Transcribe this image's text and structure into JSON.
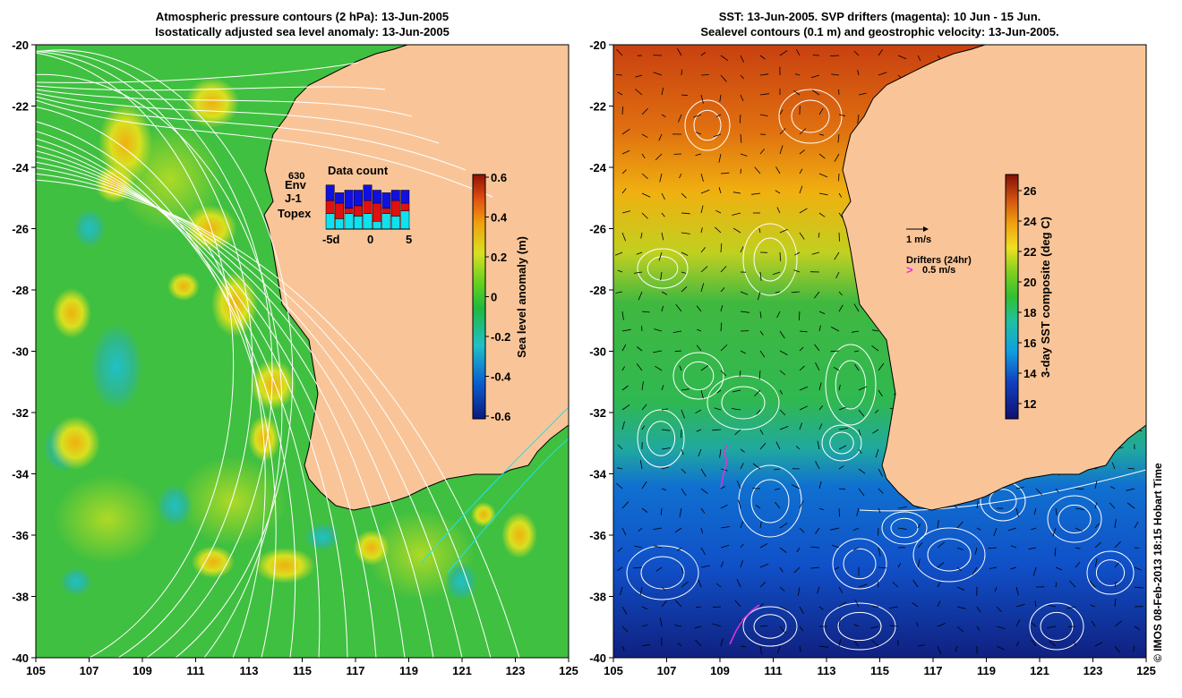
{
  "left_panel": {
    "title_line1": "Atmospheric pressure contours (2 hPa): 13-Jun-2005",
    "title_line2": "Isostatically adjusted sea level anomaly: 13-Jun-2005",
    "colorbar_label": "Sea level anomaly (m)",
    "colorbar_ticks": [
      "0.6",
      "0.4",
      "0.2",
      "0",
      "-0.2",
      "-0.4",
      "-0.6"
    ],
    "data_count": {
      "title": "Data count",
      "count_label": "630",
      "legend": [
        "Env",
        "J-1",
        "Topex"
      ],
      "legend_colors": [
        "#1010e0",
        "#e01010",
        "#10e0f0"
      ],
      "x_ticks": [
        "-5d",
        "0",
        "5"
      ],
      "bars": [
        {
          "topex": 0.3,
          "j1": 0.25,
          "env": 0.3
        },
        {
          "topex": 0.2,
          "j1": 0.3,
          "env": 0.2
        },
        {
          "topex": 0.3,
          "j1": 0.1,
          "env": 0.35
        },
        {
          "topex": 0.25,
          "j1": 0.2,
          "env": 0.3
        },
        {
          "topex": 0.3,
          "j1": 0.25,
          "env": 0.3
        },
        {
          "topex": 0.15,
          "j1": 0.35,
          "env": 0.25
        },
        {
          "topex": 0.3,
          "j1": 0.1,
          "env": 0.3
        },
        {
          "topex": 0.25,
          "j1": 0.3,
          "env": 0.2
        },
        {
          "topex": 0.35,
          "j1": 0.15,
          "env": 0.25
        }
      ]
    }
  },
  "right_panel": {
    "title_line1": "SST: 13-Jun-2005. SVP drifters (magenta): 10 Jun - 15 Jun.",
    "title_line2": "Sealevel contours (0.1 m) and geostrophic velocity: 13-Jun-2005.",
    "colorbar_label": "3-day SST composite (deg C)",
    "colorbar_ticks": [
      "26",
      "24",
      "22",
      "20",
      "18",
      "16",
      "14",
      "12"
    ],
    "velocity_scale": "1 m/s",
    "drifters_label": "Drifters (24hr)",
    "drifter_scale": "0.5 m/s"
  },
  "axes": {
    "lon_ticks": [
      "105",
      "107",
      "109",
      "111",
      "113",
      "115",
      "117",
      "119",
      "121",
      "123",
      "125"
    ],
    "lat_ticks": [
      "-20",
      "-22",
      "-24",
      "-26",
      "-28",
      "-30",
      "-32",
      "-34",
      "-36",
      "-38",
      "-40"
    ],
    "lon_range": [
      105,
      125
    ],
    "lat_range": [
      -40,
      -20
    ]
  },
  "credit": "© IMOS 08-Feb-2013 18:15 Hobart Time",
  "colors": {
    "land": "#f9c598",
    "sla_ramp": [
      "#0a1a80",
      "#0a60d0",
      "#20c0c8",
      "#20b840",
      "#60d020",
      "#d8e020",
      "#f0a010",
      "#e05010",
      "#901008"
    ],
    "sst_ramp": [
      "#101070",
      "#1040c0",
      "#10a0e0",
      "#20c0a0",
      "#30c030",
      "#80d020",
      "#f0e020",
      "#f0a010",
      "#d05010",
      "#801008"
    ]
  }
}
